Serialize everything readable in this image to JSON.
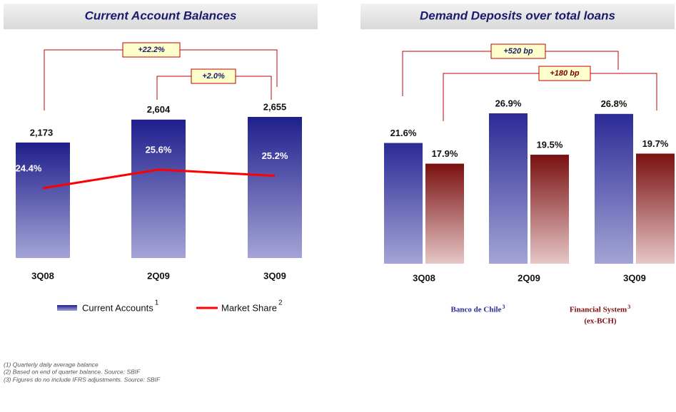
{
  "chart_data": [
    {
      "type": "bar",
      "title": "Current Account Balances",
      "categories": [
        "3Q08",
        "2Q09",
        "3Q09"
      ],
      "series": [
        {
          "name": "Current Accounts",
          "note": "1",
          "type": "bar",
          "color": "#1f1f8c",
          "values": [
            2173,
            2604,
            2655
          ],
          "value_labels": [
            "2,173",
            "2,604",
            "2,655"
          ]
        },
        {
          "name": "Market Share",
          "note": "2",
          "type": "line",
          "color": "#ff0000",
          "values": [
            24.4,
            25.6,
            25.2
          ],
          "value_labels": [
            "24.4%",
            "25.6%",
            "25.2%"
          ]
        }
      ],
      "annotations": [
        "+22.2%",
        "+2.0%"
      ]
    },
    {
      "type": "bar",
      "title": "Demand Deposits over total loans",
      "categories": [
        "3Q08",
        "2Q09",
        "3Q09"
      ],
      "series": [
        {
          "name": "Banco de Chile",
          "note": "3",
          "color": "#2b2b96",
          "values": [
            21.6,
            26.9,
            26.8
          ],
          "value_labels": [
            "21.6%",
            "26.9%",
            "26.8%"
          ]
        },
        {
          "name": "Financial System",
          "note": "3",
          "subtitle": "(ex-BCH)",
          "color": "#7a1010",
          "values": [
            17.9,
            19.5,
            19.7
          ],
          "value_labels": [
            "17.9%",
            "19.5%",
            "19.7%"
          ]
        }
      ],
      "annotations": [
        "+520 bp",
        "+180 bp"
      ]
    }
  ],
  "footnotes": [
    "(1) Quarterly daily average balance",
    "(2) Based on end of quarter balance. Source: SBIF",
    "(3) Figures do no include IFRS adjustments. Source: SBIF"
  ]
}
